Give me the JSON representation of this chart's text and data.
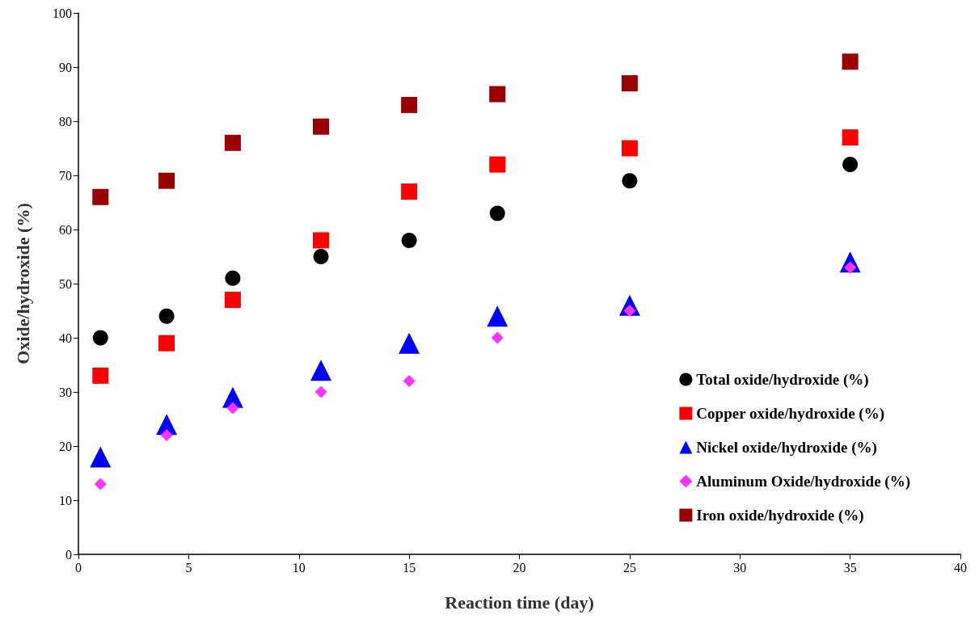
{
  "chart_data": {
    "type": "scatter",
    "xlabel": "Reaction time (day)",
    "ylabel": "Oxide/hydroxide (%)",
    "x": [
      1,
      4,
      7,
      11,
      15,
      19,
      25,
      35
    ],
    "xlim": [
      0,
      40
    ],
    "xticks": [
      0,
      5,
      10,
      15,
      20,
      25,
      30,
      35,
      40
    ],
    "ylim": [
      0,
      100
    ],
    "yticks": [
      0,
      10,
      20,
      30,
      40,
      50,
      60,
      70,
      80,
      90,
      100
    ],
    "grid": false,
    "legend": "bottom right",
    "series": [
      {
        "name": "Total oxide/hydroxide (%)",
        "color": "#000000",
        "marker": "circle",
        "values": [
          40,
          44,
          51,
          55,
          58,
          63,
          69,
          72
        ]
      },
      {
        "name": "Copper oxide/hydroxide (%)",
        "color": "#ff0000",
        "marker": "square",
        "values": [
          33,
          39,
          47,
          58,
          67,
          72,
          75,
          77
        ]
      },
      {
        "name": "Nickel oxide/hydroxide (%)",
        "color": "#0000ff",
        "marker": "triangle",
        "values": [
          18,
          24,
          29,
          34,
          39,
          44,
          46,
          54
        ]
      },
      {
        "name": "Aluminum Oxide/hydroxide (%)",
        "color": "#ff33ff",
        "marker": "diamond",
        "values": [
          13,
          22,
          27,
          30,
          32,
          40,
          45,
          53
        ]
      },
      {
        "name": "Iron oxide/hydroxide (%)",
        "color": "#990000",
        "marker": "square",
        "values": [
          66,
          69,
          76,
          79,
          83,
          85,
          87,
          91
        ]
      }
    ]
  }
}
